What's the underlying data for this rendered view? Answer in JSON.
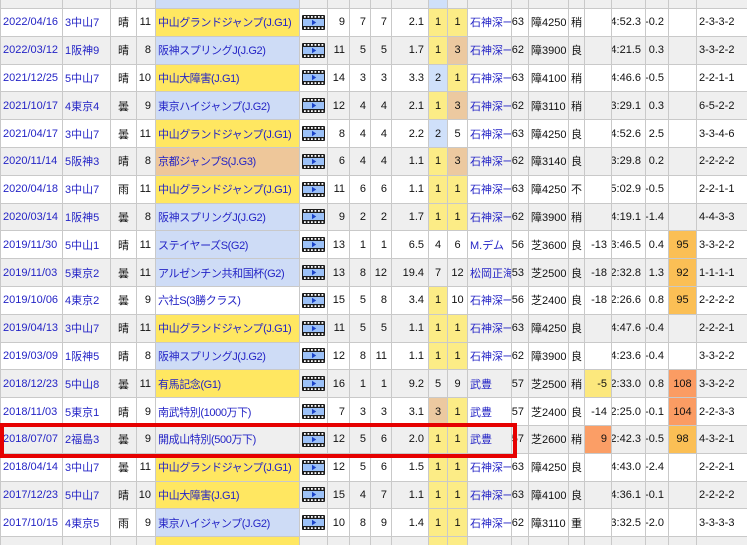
{
  "palette": {
    "g1": "#ffe761",
    "g2": "#cedcf6",
    "g3": "#eec79a",
    "p1": "#fcec86",
    "p2": "#cfe0fa",
    "p3": "#ecc9a0",
    "iy": "#fce87d",
    "is": "#fb9e66",
    "sa": "#fbbf55",
    "ss": "#fb9c63",
    "stripe": "#efefef",
    "white": "#ffffff",
    "border": "#c9c9c9",
    "link": "#2424c6",
    "highlight_red": "#e60000"
  },
  "rows": [
    {
      "date": "2022/04/16",
      "venue": "3中山7",
      "weather": "晴",
      "race_no": "11",
      "race": "中山グランドジャンプ(J.G1)",
      "race_bg": "g1",
      "heads": "9",
      "frame": "7",
      "horse": "7",
      "odds": "2.1",
      "pop": "1",
      "pop_bg": "p1",
      "fin": "1",
      "fin_bg": "p1",
      "jockey": "石神深一",
      "wt": "63",
      "dist": "障4250",
      "cond": "稍",
      "tidx": "",
      "tidx_bg": "",
      "time": "4:52.3",
      "margin": "-0.2",
      "spd": "",
      "spd_bg": "",
      "pass": "2-3-3-2"
    },
    {
      "date": "2022/03/12",
      "venue": "1阪神9",
      "weather": "晴",
      "race_no": "8",
      "race": "阪神スプリングJ(J.G2)",
      "race_bg": "g2",
      "heads": "11",
      "frame": "5",
      "horse": "5",
      "odds": "1.7",
      "pop": "1",
      "pop_bg": "p1",
      "fin": "3",
      "fin_bg": "p3",
      "jockey": "石神深一",
      "wt": "62",
      "dist": "障3900",
      "cond": "良",
      "tidx": "",
      "tidx_bg": "",
      "time": "4:21.5",
      "margin": "0.3",
      "spd": "",
      "spd_bg": "",
      "pass": "3-3-2-2"
    },
    {
      "date": "2021/12/25",
      "venue": "5中山7",
      "weather": "晴",
      "race_no": "10",
      "race": "中山大障害(J.G1)",
      "race_bg": "g1",
      "heads": "14",
      "frame": "3",
      "horse": "3",
      "odds": "3.3",
      "pop": "2",
      "pop_bg": "p2",
      "fin": "1",
      "fin_bg": "p1",
      "jockey": "石神深一",
      "wt": "63",
      "dist": "障4100",
      "cond": "稍",
      "tidx": "",
      "tidx_bg": "",
      "time": "4:46.6",
      "margin": "-0.5",
      "spd": "",
      "spd_bg": "",
      "pass": "2-2-1-1"
    },
    {
      "date": "2021/10/17",
      "venue": "4東京4",
      "weather": "曇",
      "race_no": "9",
      "race": "東京ハイジャンプ(J.G2)",
      "race_bg": "g2",
      "heads": "12",
      "frame": "4",
      "horse": "4",
      "odds": "2.1",
      "pop": "1",
      "pop_bg": "p1",
      "fin": "3",
      "fin_bg": "p3",
      "jockey": "石神深一",
      "wt": "62",
      "dist": "障3110",
      "cond": "稍",
      "tidx": "",
      "tidx_bg": "",
      "time": "3:29.1",
      "margin": "0.3",
      "spd": "",
      "spd_bg": "",
      "pass": "6-5-2-2"
    },
    {
      "date": "2021/04/17",
      "venue": "3中山7",
      "weather": "曇",
      "race_no": "11",
      "race": "中山グランドジャンプ(J.G1)",
      "race_bg": "g1",
      "heads": "8",
      "frame": "4",
      "horse": "4",
      "odds": "2.2",
      "pop": "2",
      "pop_bg": "p2",
      "fin": "5",
      "fin_bg": "",
      "jockey": "石神深一",
      "wt": "63",
      "dist": "障4250",
      "cond": "良",
      "tidx": "",
      "tidx_bg": "",
      "time": "4:52.6",
      "margin": "2.5",
      "spd": "",
      "spd_bg": "",
      "pass": "3-3-4-6"
    },
    {
      "date": "2020/11/14",
      "venue": "5阪神3",
      "weather": "晴",
      "race_no": "8",
      "race": "京都ジャンプS(J.G3)",
      "race_bg": "g3",
      "heads": "6",
      "frame": "4",
      "horse": "4",
      "odds": "1.1",
      "pop": "1",
      "pop_bg": "p1",
      "fin": "3",
      "fin_bg": "p3",
      "jockey": "石神深一",
      "wt": "62",
      "dist": "障3140",
      "cond": "良",
      "tidx": "",
      "tidx_bg": "",
      "time": "3:29.8",
      "margin": "0.2",
      "spd": "",
      "spd_bg": "",
      "pass": "2-2-2-2"
    },
    {
      "date": "2020/04/18",
      "venue": "3中山7",
      "weather": "雨",
      "race_no": "11",
      "race": "中山グランドジャンプ(J.G1)",
      "race_bg": "g1",
      "heads": "11",
      "frame": "6",
      "horse": "6",
      "odds": "1.1",
      "pop": "1",
      "pop_bg": "p1",
      "fin": "1",
      "fin_bg": "p1",
      "jockey": "石神深一",
      "wt": "63",
      "dist": "障4250",
      "cond": "不",
      "tidx": "",
      "tidx_bg": "",
      "time": "5:02.9",
      "margin": "-0.5",
      "spd": "",
      "spd_bg": "",
      "pass": "2-2-1-1"
    },
    {
      "date": "2020/03/14",
      "venue": "1阪神5",
      "weather": "曇",
      "race_no": "8",
      "race": "阪神スプリングJ(J.G2)",
      "race_bg": "g2",
      "heads": "9",
      "frame": "2",
      "horse": "2",
      "odds": "1.7",
      "pop": "1",
      "pop_bg": "p1",
      "fin": "1",
      "fin_bg": "p1",
      "jockey": "石神深一",
      "wt": "62",
      "dist": "障3900",
      "cond": "稍",
      "tidx": "",
      "tidx_bg": "",
      "time": "4:19.1",
      "margin": "-1.4",
      "spd": "",
      "spd_bg": "",
      "pass": "4-4-3-3"
    },
    {
      "date": "2019/11/30",
      "venue": "5中山1",
      "weather": "晴",
      "race_no": "11",
      "race": "ステイヤーズS(G2)",
      "race_bg": "g2",
      "heads": "13",
      "frame": "1",
      "horse": "1",
      "odds": "6.5",
      "pop": "4",
      "pop_bg": "",
      "fin": "6",
      "fin_bg": "",
      "jockey": "M.デム",
      "wt": "56",
      "dist": "芝3600",
      "cond": "良",
      "tidx": "-13",
      "tidx_bg": "",
      "time": "3:46.5",
      "margin": "0.4",
      "spd": "95",
      "spd_bg": "sa",
      "pass": "3-3-2-2"
    },
    {
      "date": "2019/11/03",
      "venue": "5東京2",
      "weather": "曇",
      "race_no": "11",
      "race": "アルゼンチン共和国杯(G2)",
      "race_bg": "g2",
      "heads": "13",
      "frame": "8",
      "horse": "12",
      "odds": "19.4",
      "pop": "7",
      "pop_bg": "",
      "fin": "12",
      "fin_bg": "",
      "jockey": "松岡正海",
      "wt": "53",
      "dist": "芝2500",
      "cond": "良",
      "tidx": "-18",
      "tidx_bg": "",
      "time": "2:32.8",
      "margin": "1.3",
      "spd": "92",
      "spd_bg": "sa",
      "pass": "1-1-1-1"
    },
    {
      "date": "2019/10/06",
      "venue": "4東京2",
      "weather": "曇",
      "race_no": "9",
      "race": "六社S(3勝クラス)",
      "race_bg": "",
      "heads": "15",
      "frame": "5",
      "horse": "8",
      "odds": "3.4",
      "pop": "1",
      "pop_bg": "p1",
      "fin": "10",
      "fin_bg": "",
      "jockey": "石神深一",
      "wt": "56",
      "dist": "芝2400",
      "cond": "良",
      "tidx": "-18",
      "tidx_bg": "",
      "time": "2:26.6",
      "margin": "0.8",
      "spd": "95",
      "spd_bg": "sa",
      "pass": "2-2-2-2"
    },
    {
      "date": "2019/04/13",
      "venue": "3中山7",
      "weather": "晴",
      "race_no": "11",
      "race": "中山グランドジャンプ(J.G1)",
      "race_bg": "g1",
      "heads": "11",
      "frame": "5",
      "horse": "5",
      "odds": "1.1",
      "pop": "1",
      "pop_bg": "p1",
      "fin": "1",
      "fin_bg": "p1",
      "jockey": "石神深一",
      "wt": "63",
      "dist": "障4250",
      "cond": "良",
      "tidx": "",
      "tidx_bg": "",
      "time": "4:47.6",
      "margin": "-0.4",
      "spd": "",
      "spd_bg": "",
      "pass": "2-2-2-1"
    },
    {
      "date": "2019/03/09",
      "venue": "1阪神5",
      "weather": "晴",
      "race_no": "8",
      "race": "阪神スプリングJ(J.G2)",
      "race_bg": "g2",
      "heads": "12",
      "frame": "8",
      "horse": "11",
      "odds": "1.1",
      "pop": "1",
      "pop_bg": "p1",
      "fin": "1",
      "fin_bg": "p1",
      "jockey": "石神深一",
      "wt": "62",
      "dist": "障3900",
      "cond": "良",
      "tidx": "",
      "tidx_bg": "",
      "time": "4:23.6",
      "margin": "-0.4",
      "spd": "",
      "spd_bg": "",
      "pass": "3-3-2-2"
    },
    {
      "date": "2018/12/23",
      "venue": "5中山8",
      "weather": "曇",
      "race_no": "11",
      "race": "有馬記念(G1)",
      "race_bg": "g1",
      "heads": "16",
      "frame": "1",
      "horse": "1",
      "odds": "9.2",
      "pop": "5",
      "pop_bg": "",
      "fin": "9",
      "fin_bg": "",
      "jockey": "武豊",
      "wt": "57",
      "dist": "芝2500",
      "cond": "稍",
      "tidx": "-5",
      "tidx_bg": "iy",
      "time": "2:33.0",
      "margin": "0.8",
      "spd": "108",
      "spd_bg": "ss",
      "pass": "3-3-2-2"
    },
    {
      "date": "2018/11/03",
      "venue": "5東京1",
      "weather": "晴",
      "race_no": "9",
      "race": "南武特別(1000万下)",
      "race_bg": "",
      "heads": "7",
      "frame": "3",
      "horse": "3",
      "odds": "3.1",
      "pop": "3",
      "pop_bg": "p3",
      "fin": "1",
      "fin_bg": "p1",
      "jockey": "武豊",
      "wt": "57",
      "dist": "芝2400",
      "cond": "良",
      "tidx": "-14",
      "tidx_bg": "",
      "time": "2:25.0",
      "margin": "-0.1",
      "spd": "104",
      "spd_bg": "ss",
      "pass": "2-2-3-3"
    },
    {
      "date": "2018/07/07",
      "venue": "2福島3",
      "weather": "曇",
      "race_no": "9",
      "race": "開成山特別(500万下)",
      "race_bg": "",
      "heads": "12",
      "frame": "5",
      "horse": "6",
      "odds": "2.0",
      "pop": "1",
      "pop_bg": "p1",
      "fin": "1",
      "fin_bg": "p1",
      "jockey": "武豊",
      "wt": "57",
      "dist": "芝2600",
      "cond": "稍",
      "tidx": "9",
      "tidx_bg": "is",
      "time": "2:42.3",
      "margin": "-0.5",
      "spd": "98",
      "spd_bg": "sa",
      "pass": "4-3-2-1"
    },
    {
      "date": "2018/04/14",
      "venue": "3中山7",
      "weather": "曇",
      "race_no": "11",
      "race": "中山グランドジャンプ(J.G1)",
      "race_bg": "g1",
      "heads": "12",
      "frame": "5",
      "horse": "6",
      "odds": "1.5",
      "pop": "1",
      "pop_bg": "p1",
      "fin": "1",
      "fin_bg": "p1",
      "jockey": "石神深一",
      "wt": "63",
      "dist": "障4250",
      "cond": "良",
      "tidx": "",
      "tidx_bg": "",
      "time": "4:43.0",
      "margin": "-2.4",
      "spd": "",
      "spd_bg": "",
      "pass": "2-2-2-1"
    },
    {
      "date": "2017/12/23",
      "venue": "5中山7",
      "weather": "晴",
      "race_no": "10",
      "race": "中山大障害(J.G1)",
      "race_bg": "g1",
      "heads": "15",
      "frame": "4",
      "horse": "7",
      "odds": "1.1",
      "pop": "1",
      "pop_bg": "p1",
      "fin": "1",
      "fin_bg": "p1",
      "jockey": "石神深一",
      "wt": "63",
      "dist": "障4100",
      "cond": "良",
      "tidx": "",
      "tidx_bg": "",
      "time": "4:36.1",
      "margin": "-0.1",
      "spd": "",
      "spd_bg": "",
      "pass": "2-2-2-2"
    },
    {
      "date": "2017/10/15",
      "venue": "4東京5",
      "weather": "雨",
      "race_no": "9",
      "race": "東京ハイジャンプ(J.G2)",
      "race_bg": "g2",
      "heads": "10",
      "frame": "8",
      "horse": "9",
      "odds": "1.4",
      "pop": "1",
      "pop_bg": "p1",
      "fin": "1",
      "fin_bg": "p1",
      "jockey": "石神深一",
      "wt": "62",
      "dist": "障3110",
      "cond": "重",
      "tidx": "",
      "tidx_bg": "",
      "time": "3:32.5",
      "margin": "-2.0",
      "spd": "",
      "spd_bg": "",
      "pass": "3-3-3-3"
    }
  ],
  "partial_top": {
    "race_bg": "g2",
    "pop_bg": "p2"
  },
  "partial_bottom": {
    "race_bg": "g1",
    "pop_bg": "p1",
    "fin_bg": "p1"
  },
  "highlight": {
    "row_date": "2018/07/07"
  }
}
